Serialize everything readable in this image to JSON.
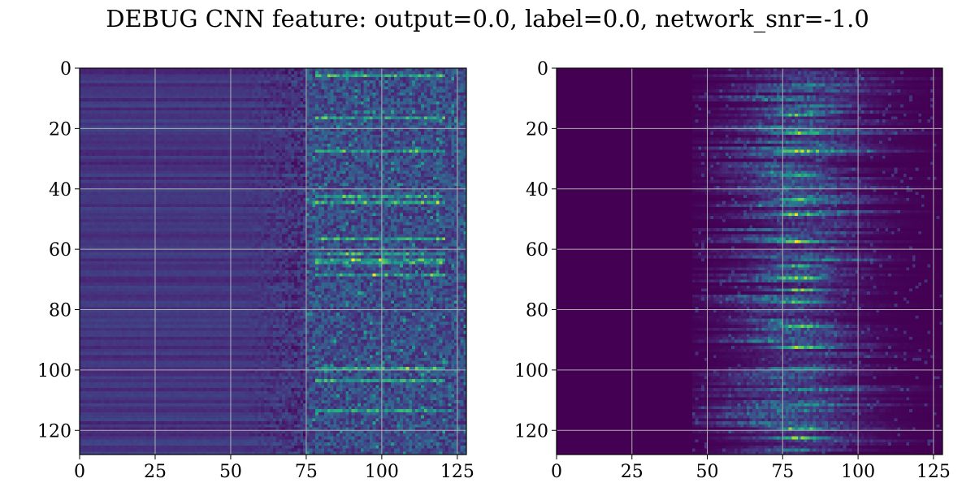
{
  "title": "DEBUG CNN feature: output=0.0, label=0.0, network_snr=-1.0",
  "colors": {
    "colormap": "viridis",
    "colormap_stops": [
      "#440154",
      "#482878",
      "#3e4a89",
      "#31688e",
      "#26828e",
      "#1f9e89",
      "#35b779",
      "#6ece58",
      "#b5de2b",
      "#fde725"
    ],
    "gridline": "#b0b0b0",
    "axes": "#000000"
  },
  "chart_data": [
    {
      "type": "heatmap",
      "name": "",
      "rows": 128,
      "cols": 128,
      "xlim": [
        0,
        128
      ],
      "ylim": [
        128,
        0
      ],
      "y_inverted": true,
      "xticks": [
        0,
        25,
        50,
        75,
        100,
        125
      ],
      "yticks": [
        0,
        20,
        40,
        60,
        80,
        100,
        120
      ],
      "xtick_labels": [
        "0",
        "25",
        "50",
        "75",
        "100",
        "125"
      ],
      "ytick_labels": [
        "0",
        "20",
        "40",
        "60",
        "80",
        "100",
        "120"
      ],
      "grid": true,
      "cmap": "viridis",
      "pattern": {
        "left_region": {
          "cols": [
            0,
            50
          ],
          "level_mean": 0.2,
          "row_variation": 0.08
        },
        "transition_cols": [
          50,
          75
        ],
        "right_region": {
          "cols": [
            75,
            128
          ],
          "level_mean": 0.3,
          "noise": 0.25
        },
        "bright_rows": [
          2,
          16,
          27,
          42,
          44,
          56,
          61,
          63,
          64,
          68,
          99,
          103,
          113
        ],
        "bright_columns_range": [
          78,
          120
        ]
      }
    },
    {
      "type": "heatmap",
      "name": "",
      "rows": 128,
      "cols": 128,
      "xlim": [
        0,
        128
      ],
      "ylim": [
        128,
        0
      ],
      "y_inverted": true,
      "xticks": [
        0,
        25,
        50,
        75,
        100,
        125
      ],
      "yticks": [
        0,
        20,
        40,
        60,
        80,
        100,
        120
      ],
      "xtick_labels": [
        "0",
        "25",
        "50",
        "75",
        "100",
        "125"
      ],
      "ytick_labels": [
        "0",
        "20",
        "40",
        "60",
        "80",
        "100",
        "120"
      ],
      "grid": true,
      "cmap": "viridis",
      "pattern": {
        "background_level": 0.02,
        "active_cols": [
          45,
          128
        ],
        "peak_col": 80,
        "peak_width": 14,
        "band_mean": 0.3,
        "bright_rows": [
          15,
          21,
          27,
          35,
          43,
          48,
          57,
          65,
          69,
          73,
          77,
          85,
          92,
          119,
          122
        ]
      }
    }
  ]
}
